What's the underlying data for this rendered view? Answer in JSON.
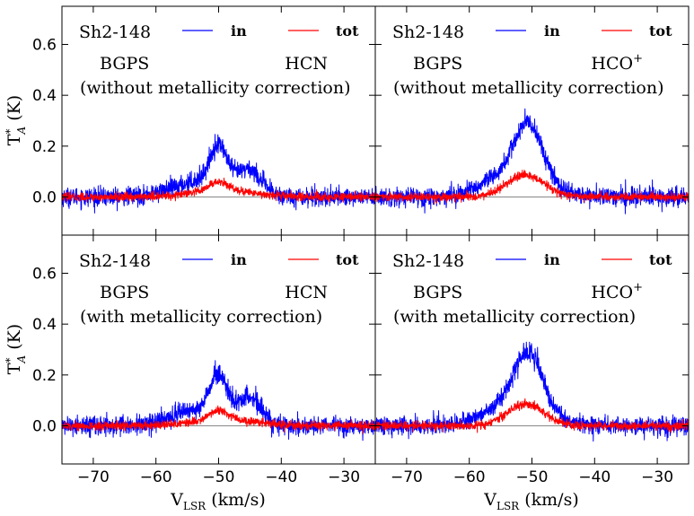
{
  "chart_data": {
    "type": "line",
    "layout": "2x2 grid, shared axes",
    "xlabel": "V_LSR (km/s)",
    "ylabel": "T*_A (K)",
    "xlim": [
      -75,
      -25
    ],
    "ylim": [
      -0.15,
      0.75
    ],
    "xticks": [
      -70,
      -60,
      -50,
      -40,
      -30
    ],
    "xtick_labels": [
      "−70",
      "−60",
      "−50",
      "−40",
      "−30"
    ],
    "yticks": [
      0.0,
      0.2,
      0.4,
      0.6
    ],
    "ytick_labels": [
      "0.0",
      "0.2",
      "0.4",
      "0.6"
    ],
    "legend": {
      "position": "top",
      "entries": [
        {
          "name": "in",
          "color": "#0000ff"
        },
        {
          "name": "tot",
          "color": "#ff0000"
        }
      ]
    },
    "colors": {
      "in": "#0000ff",
      "tot": "#ff0000",
      "zero_line": "#888888"
    },
    "panels": [
      {
        "source": "Sh2-148",
        "survey": "BGPS",
        "molecule": "HCN",
        "molecule_sup": "",
        "note": "(without metallicity correction)",
        "noise": {
          "in": 0.018,
          "tot": 0.008
        },
        "series": [
          {
            "name": "in",
            "color": "#0000ff",
            "components": [
              {
                "center": -50,
                "amp": 0.14,
                "sigma": 1.3
              },
              {
                "center": -51.5,
                "amp": 0.07,
                "sigma": 5.0
              },
              {
                "center": -45,
                "amp": 0.08,
                "sigma": 1.8
              }
            ]
          },
          {
            "name": "tot",
            "color": "#ff0000",
            "components": [
              {
                "center": -50,
                "amp": 0.035,
                "sigma": 1.5
              },
              {
                "center": -49,
                "amp": 0.025,
                "sigma": 5.0
              }
            ]
          }
        ]
      },
      {
        "source": "Sh2-148",
        "survey": "BGPS",
        "molecule": "HCO",
        "molecule_sup": "+",
        "note": "(without metallicity correction)",
        "noise": {
          "in": 0.018,
          "tot": 0.008
        },
        "series": [
          {
            "name": "in",
            "color": "#0000ff",
            "components": [
              {
                "center": -50.5,
                "amp": 0.2,
                "sigma": 2.2
              },
              {
                "center": -52.5,
                "amp": 0.1,
                "sigma": 4.5
              }
            ]
          },
          {
            "name": "tot",
            "color": "#ff0000",
            "components": [
              {
                "center": -51,
                "amp": 0.085,
                "sigma": 3.0
              }
            ]
          }
        ]
      },
      {
        "source": "Sh2-148",
        "survey": "BGPS",
        "molecule": "HCN",
        "molecule_sup": "",
        "note": "(with metallicity correction)",
        "noise": {
          "in": 0.018,
          "tot": 0.008
        },
        "series": [
          {
            "name": "in",
            "color": "#0000ff",
            "components": [
              {
                "center": -50,
                "amp": 0.14,
                "sigma": 1.3
              },
              {
                "center": -51.5,
                "amp": 0.07,
                "sigma": 5.0
              },
              {
                "center": -45,
                "amp": 0.08,
                "sigma": 1.8
              }
            ]
          },
          {
            "name": "tot",
            "color": "#ff0000",
            "components": [
              {
                "center": -50,
                "amp": 0.035,
                "sigma": 1.5
              },
              {
                "center": -49,
                "amp": 0.025,
                "sigma": 5.0
              }
            ]
          }
        ]
      },
      {
        "source": "Sh2-148",
        "survey": "BGPS",
        "molecule": "HCO",
        "molecule_sup": "+",
        "note": "(with metallicity correction)",
        "noise": {
          "in": 0.018,
          "tot": 0.008
        },
        "series": [
          {
            "name": "in",
            "color": "#0000ff",
            "components": [
              {
                "center": -50.5,
                "amp": 0.2,
                "sigma": 2.2
              },
              {
                "center": -52.5,
                "amp": 0.1,
                "sigma": 4.5
              }
            ]
          },
          {
            "name": "tot",
            "color": "#ff0000",
            "components": [
              {
                "center": -51,
                "amp": 0.085,
                "sigma": 3.0
              }
            ]
          }
        ]
      }
    ]
  }
}
